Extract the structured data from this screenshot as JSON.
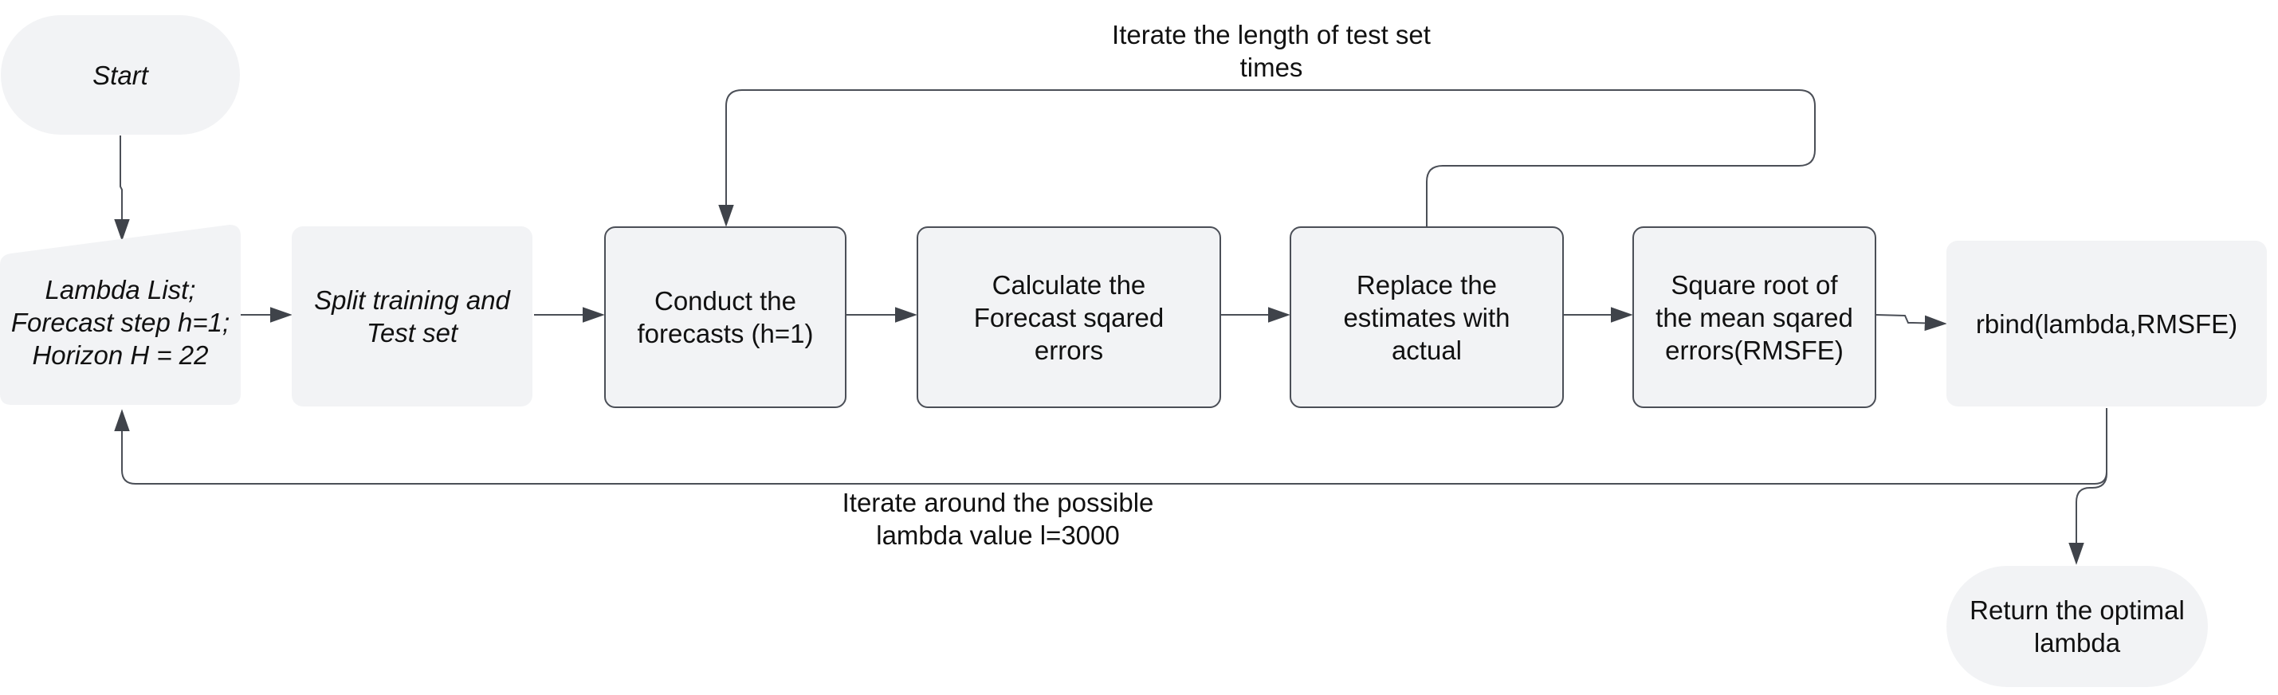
{
  "nodes": {
    "start": "Start",
    "lambda_list": "Lambda List;\nForecast step h=1;\nHorizon H = 22",
    "split": "Split training and\nTest set",
    "conduct": "Conduct the\nforecasts (h=1)",
    "calculate": "Calculate the\nForecast sqared\nerrors",
    "replace": "Replace the\nestimates with\nactual",
    "sqrt": "Square root of\nthe mean sqared\nerrors(RMSFE)",
    "rbind": "rbind(lambda,RMSFE)",
    "return": "Return the optimal\nlambda"
  },
  "labels": {
    "loop_top": "Iterate the length of test set\ntimes",
    "loop_bottom": "Iterate around the possible\nlambda value l=3000"
  },
  "colors": {
    "node_fill": "#f2f3f5",
    "line": "#4b4f57"
  }
}
